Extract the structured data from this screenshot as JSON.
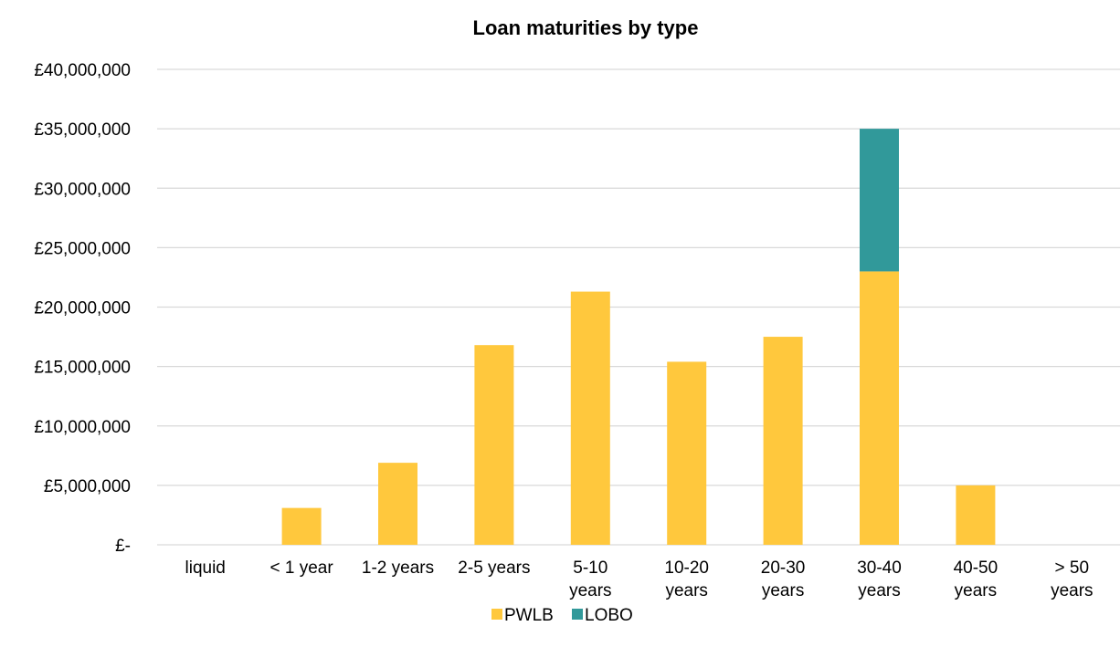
{
  "chart_data": {
    "type": "bar",
    "stacked": true,
    "title": "Loan maturities by type",
    "xlabel": "",
    "ylabel": "",
    "categories": [
      [
        "liquid"
      ],
      [
        "< 1 year"
      ],
      [
        "1-2 years"
      ],
      [
        "2-5 years"
      ],
      [
        "5-10",
        "years"
      ],
      [
        "10-20",
        "years"
      ],
      [
        "20-30",
        "years"
      ],
      [
        "30-40",
        "years"
      ],
      [
        "40-50",
        "years"
      ],
      [
        "> 50",
        "years"
      ]
    ],
    "series": [
      {
        "name": "PWLB",
        "color": "#FFC83D",
        "values": [
          0,
          3100000,
          6900000,
          16800000,
          21300000,
          15400000,
          17500000,
          23000000,
          5000000,
          0
        ]
      },
      {
        "name": "LOBO",
        "color": "#31999A",
        "values": [
          0,
          0,
          0,
          0,
          0,
          0,
          0,
          12000000,
          0,
          0
        ]
      }
    ],
    "ylim": [
      0,
      40000000
    ],
    "yticks": [
      0,
      5000000,
      10000000,
      15000000,
      20000000,
      25000000,
      30000000,
      35000000,
      40000000
    ],
    "ytick_labels": [
      "£-",
      "£5,000,000",
      "£10,000,000",
      "£15,000,000",
      "£20,000,000",
      "£25,000,000",
      "£30,000,000",
      "£35,000,000",
      "£40,000,000"
    ],
    "grid": true,
    "legend_position": "bottom"
  }
}
